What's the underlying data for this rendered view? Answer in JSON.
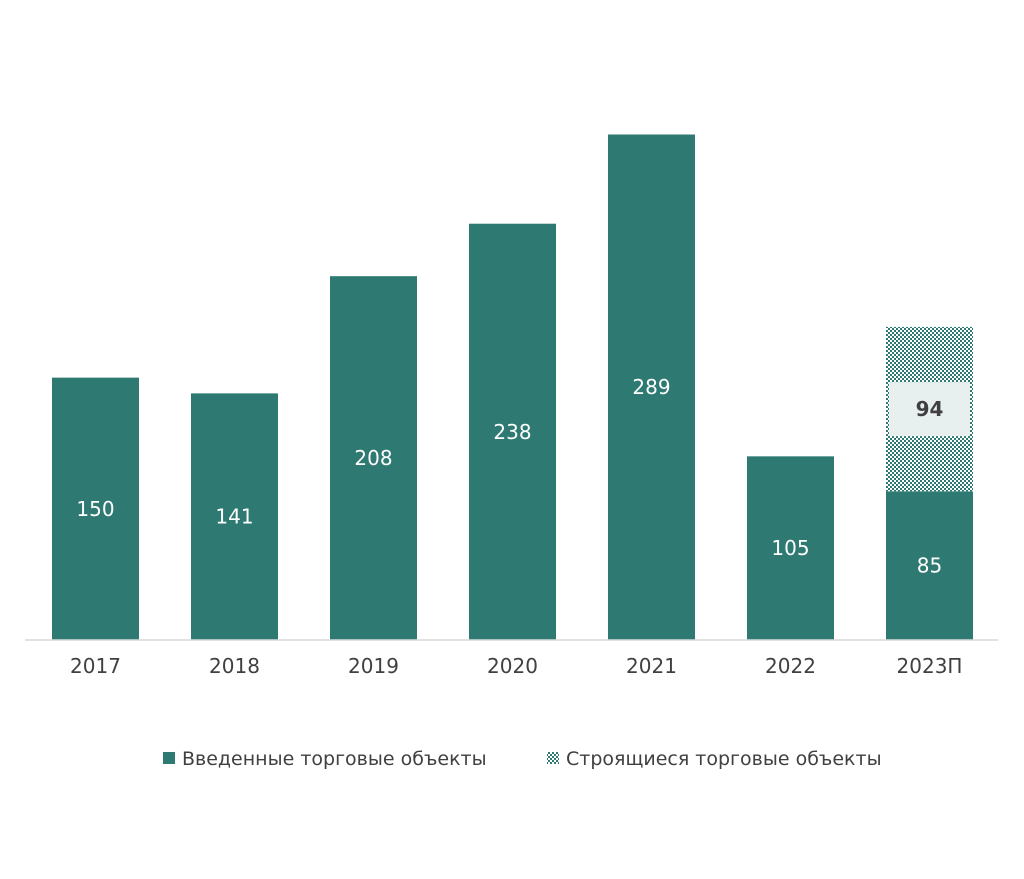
{
  "chart_data": {
    "type": "bar",
    "stacked": true,
    "categories": [
      "2017",
      "2018",
      "2019",
      "2020",
      "2021",
      "2022",
      "2023П"
    ],
    "series": [
      {
        "name": "Введенные торговые объекты",
        "values": [
          150,
          141,
          208,
          238,
          289,
          105,
          85
        ],
        "color": "#2e7a73",
        "fill": "solid",
        "label_color": "#ffffff"
      },
      {
        "name": "Строящиеся торговые объекты",
        "values": [
          0,
          0,
          0,
          0,
          0,
          0,
          94
        ],
        "color": "#2e7a73",
        "fill": "pattern-dots",
        "label_color": "#404040",
        "label_style": "bold-boxed"
      }
    ],
    "ylim": [
      0,
      291
    ],
    "grid": false,
    "legend_position": "bottom"
  }
}
